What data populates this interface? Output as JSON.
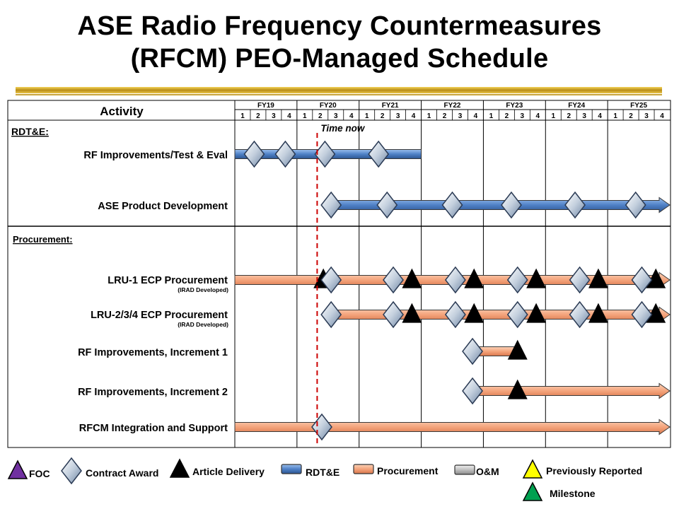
{
  "title": {
    "line1": "ASE Radio Frequency Countermeasures",
    "line2": "(RFCM) PEO-Managed Schedule"
  },
  "chart_data": {
    "type": "gantt",
    "header": "Activity",
    "fiscal_years": [
      "FY19",
      "FY20",
      "FY21",
      "FY22",
      "FY23",
      "FY24",
      "FY25"
    ],
    "quarters": [
      "1",
      "2",
      "3",
      "4"
    ],
    "time_now": {
      "label": "Time now",
      "fy": "FY20",
      "quarter": 1.3
    },
    "sections": [
      "RDT&E:",
      "Procurement:"
    ],
    "activities": [
      {
        "name": "RF Improvements/Test & Eval",
        "sub": "",
        "section": "RDT&E:",
        "type": "RDT&E",
        "start": 0.0,
        "end": 12.0,
        "arrow": false,
        "contract_awards": [
          1.25,
          3.25,
          5.8,
          9.25
        ],
        "deliveries": []
      },
      {
        "name": "ASE Product Development",
        "sub": "",
        "section": "RDT&E:",
        "type": "RDT&E",
        "start": 6.2,
        "end": 28.0,
        "arrow": true,
        "contract_awards": [
          6.2,
          9.8,
          14.0,
          17.8,
          21.9,
          25.8
        ],
        "deliveries": []
      },
      {
        "name": "LRU-1 ECP Procurement",
        "sub": "(IRAD Developed)",
        "section": "Procurement:",
        "type": "Procurement",
        "start": 0.0,
        "end": 28.0,
        "arrow": true,
        "contract_awards": [
          6.2,
          10.2,
          14.2,
          18.2,
          22.2,
          26.2
        ],
        "deliveries": [
          5.7,
          11.4,
          15.4,
          19.4,
          23.4,
          27.1
        ]
      },
      {
        "name": "LRU-2/3/4 ECP Procurement",
        "sub": "(IRAD Developed)",
        "section": "Procurement:",
        "type": "Procurement",
        "start": 6.2,
        "end": 28.0,
        "arrow": true,
        "contract_awards": [
          6.2,
          10.2,
          14.2,
          18.2,
          22.2,
          26.2
        ],
        "deliveries": [
          11.4,
          15.4,
          19.4,
          23.4,
          27.1
        ]
      },
      {
        "name": "RF Improvements, Increment 1",
        "sub": "",
        "section": "Procurement:",
        "type": "Procurement",
        "start": 15.3,
        "end": 18.2,
        "arrow": false,
        "contract_awards": [
          15.3
        ],
        "deliveries": [
          18.2
        ]
      },
      {
        "name": "RF Improvements, Increment 2",
        "sub": "",
        "section": "Procurement:",
        "type": "Procurement",
        "start": 15.3,
        "end": 28.0,
        "arrow": true,
        "contract_awards": [
          15.3
        ],
        "deliveries": [
          18.2
        ]
      },
      {
        "name": "RFCM Integration and Support",
        "sub": "",
        "section": "Procurement:",
        "type": "Procurement",
        "start": 0.0,
        "end": 28.0,
        "arrow": true,
        "contract_awards": [
          5.6
        ],
        "deliveries": []
      }
    ],
    "legend": [
      {
        "label": "FOC",
        "shape": "triangle",
        "color": "#7030a0"
      },
      {
        "label": "Contract Award",
        "shape": "diamond",
        "color": "#9eb1c8"
      },
      {
        "label": "Article Delivery",
        "shape": "triangle",
        "color": "#000000"
      },
      {
        "label": "RDT&E",
        "shape": "bar",
        "color": "#5b8fd4"
      },
      {
        "label": "Procurement",
        "shape": "bar",
        "color": "#f4a47c"
      },
      {
        "label": "O&M",
        "shape": "bar",
        "color": "#c0c0c0"
      },
      {
        "label": "Previously Reported",
        "shape": "triangle",
        "color": "#ffff00"
      },
      {
        "label": "Milestone",
        "shape": "triangle",
        "color": "#00a050"
      }
    ],
    "colors": {
      "rdte": "#4f81c7",
      "procurement": "#f4a47c",
      "time_now": "#cc0000"
    }
  }
}
